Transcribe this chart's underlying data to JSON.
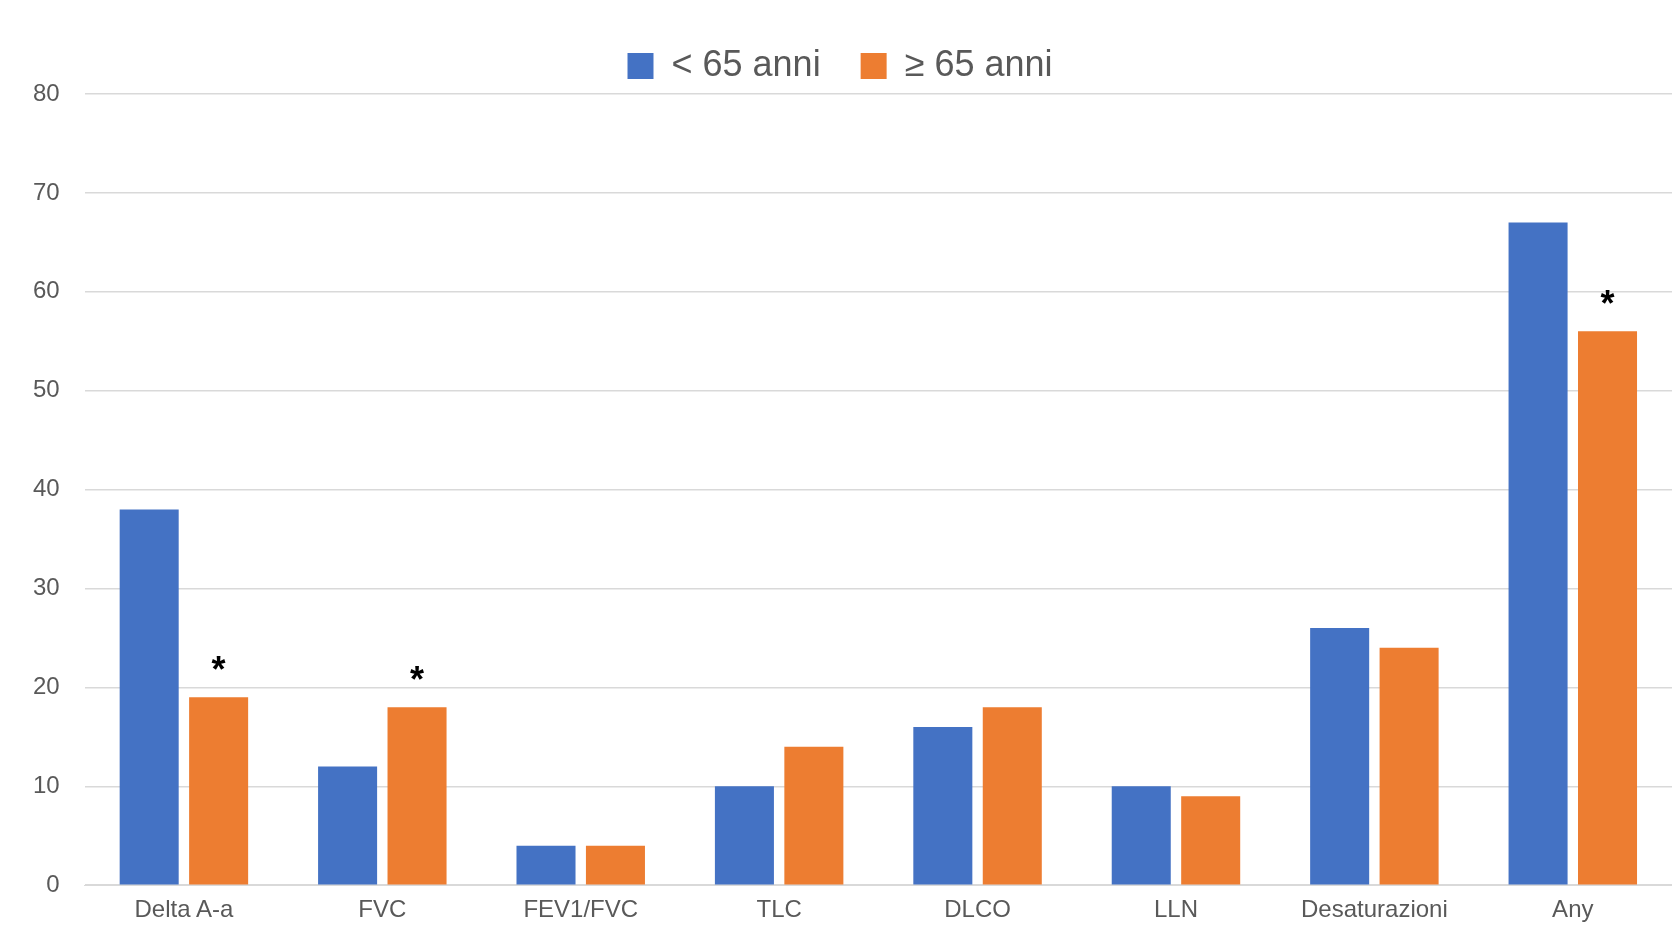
{
  "chart_data": {
    "type": "bar",
    "categories": [
      "Delta A-a",
      "FVC",
      "FEV1/FVC",
      "TLC",
      "DLCO",
      "LLN",
      "Desaturazioni",
      "Any"
    ],
    "series": [
      {
        "name": "< 65 anni",
        "color": "#4472c4",
        "values": [
          38,
          12,
          4,
          10,
          16,
          10,
          26,
          67
        ]
      },
      {
        "name": "≥ 65 anni",
        "color": "#ed7d31",
        "values": [
          19,
          18,
          4,
          14,
          18,
          9,
          24,
          56
        ],
        "value_labels": [
          "*",
          "*",
          null,
          null,
          null,
          null,
          null,
          "*"
        ]
      }
    ],
    "ylim": [
      0,
      80
    ],
    "yticks": [
      0,
      10,
      20,
      30,
      40,
      50,
      60,
      70,
      80
    ],
    "grid": "y",
    "legend": "top"
  }
}
